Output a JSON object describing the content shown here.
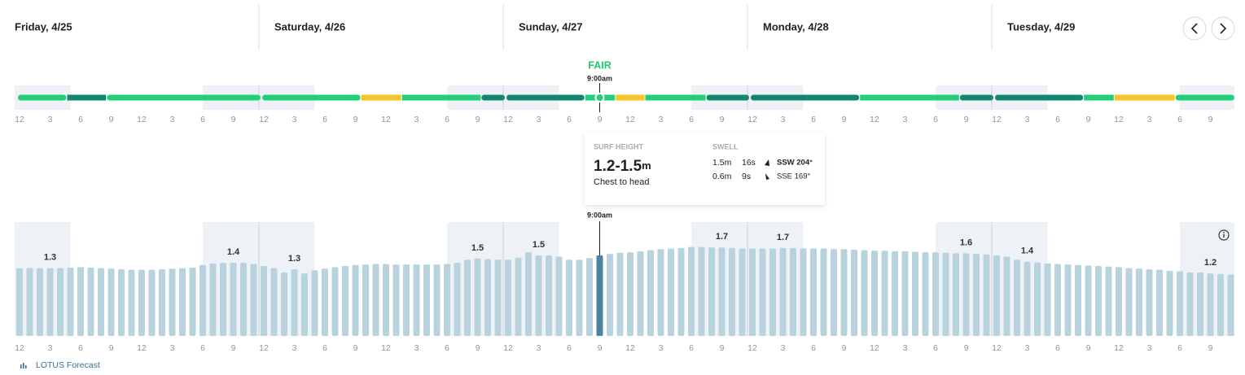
{
  "days": [
    "Friday, 4/25",
    "Saturday, 4/26",
    "Sunday, 4/27",
    "Monday, 4/28",
    "Tuesday, 4/29"
  ],
  "hour_labels": [
    12,
    3,
    6,
    9,
    12,
    3,
    6,
    9
  ],
  "night": [
    [
      0,
      5
    ],
    [
      18,
      29
    ],
    [
      42,
      53
    ],
    [
      66,
      77
    ],
    [
      90,
      101
    ],
    [
      114,
      120
    ]
  ],
  "rating": {
    "label": "FAIR",
    "time": "9:00am",
    "hour": 57,
    "segments": [
      {
        "color": "#22cf78",
        "start": 0,
        "end": 4.6
      },
      {
        "color": "#12866e",
        "start": 4.6,
        "end": 8.5
      },
      {
        "color": "#22cf78",
        "start": 8.5,
        "end": 24
      },
      {
        "color": "#22cf78",
        "start": 24,
        "end": 33.5
      },
      {
        "color": "#f6c329",
        "start": 33.5,
        "end": 37.5
      },
      {
        "color": "#22cf78",
        "start": 37.5,
        "end": 45.3
      },
      {
        "color": "#12866e",
        "start": 45.3,
        "end": 48
      },
      {
        "color": "#12866e",
        "start": 48,
        "end": 55.5
      },
      {
        "color": "#22cf78",
        "start": 55.5,
        "end": 58.5
      },
      {
        "color": "#f6c329",
        "start": 58.5,
        "end": 61.4
      },
      {
        "color": "#22cf78",
        "start": 61.4,
        "end": 67.4
      },
      {
        "color": "#12866e",
        "start": 67.4,
        "end": 72
      },
      {
        "color": "#12866e",
        "start": 72,
        "end": 82.5
      },
      {
        "color": "#22cf78",
        "start": 82.5,
        "end": 92.3
      },
      {
        "color": "#12866e",
        "start": 92.3,
        "end": 96
      },
      {
        "color": "#12866e",
        "start": 96,
        "end": 104.5
      },
      {
        "color": "#22cf78",
        "start": 104.5,
        "end": 107.5
      },
      {
        "color": "#f6c329",
        "start": 107.5,
        "end": 113.5
      },
      {
        "color": "#22cf78",
        "start": 113.5,
        "end": 120
      }
    ]
  },
  "tooltip": {
    "surf_title": "SURF HEIGHT",
    "height": "1.2-1.5",
    "unit": "m",
    "description": "Chest to head",
    "swell_title": "SWELL",
    "swells": [
      {
        "height": "1.5m",
        "period": "16s",
        "direction": "SSW 204°"
      },
      {
        "height": "0.6m",
        "period": "9s",
        "direction": "SSE 169°"
      }
    ]
  },
  "surf": {
    "ylim": [
      0,
      2.15
    ],
    "color": "#b9d3de",
    "selected_color": "#4d83a0",
    "time": "9:00am",
    "selected": 57,
    "values": [
      1.28,
      1.28,
      1.28,
      1.28,
      1.28,
      1.29,
      1.3,
      1.29,
      1.28,
      1.27,
      1.26,
      1.25,
      1.25,
      1.25,
      1.26,
      1.27,
      1.28,
      1.29,
      1.34,
      1.37,
      1.38,
      1.38,
      1.38,
      1.36,
      1.32,
      1.28,
      1.2,
      1.26,
      1.18,
      1.24,
      1.27,
      1.3,
      1.32,
      1.34,
      1.35,
      1.36,
      1.36,
      1.35,
      1.35,
      1.35,
      1.35,
      1.35,
      1.36,
      1.38,
      1.44,
      1.46,
      1.45,
      1.44,
      1.44,
      1.48,
      1.58,
      1.52,
      1.52,
      1.5,
      1.44,
      1.44,
      1.47,
      1.52,
      1.55,
      1.57,
      1.58,
      1.6,
      1.62,
      1.64,
      1.65,
      1.66,
      1.68,
      1.68,
      1.67,
      1.67,
      1.66,
      1.65,
      1.65,
      1.65,
      1.65,
      1.66,
      1.66,
      1.65,
      1.65,
      1.65,
      1.64,
      1.64,
      1.63,
      1.62,
      1.61,
      1.61,
      1.6,
      1.6,
      1.59,
      1.58,
      1.58,
      1.57,
      1.56,
      1.56,
      1.55,
      1.54,
      1.52,
      1.5,
      1.44,
      1.4,
      1.39,
      1.37,
      1.36,
      1.35,
      1.34,
      1.33,
      1.32,
      1.31,
      1.3,
      1.28,
      1.27,
      1.26,
      1.25,
      1.23,
      1.22,
      1.2,
      1.2,
      1.18,
      1.17,
      1.16
    ],
    "annotations": [
      {
        "hour": 3,
        "value": 1.3
      },
      {
        "hour": 21,
        "value": 1.4
      },
      {
        "hour": 27,
        "value": 1.3
      },
      {
        "hour": 45,
        "value": 1.5
      },
      {
        "hour": 51,
        "value": 1.5
      },
      {
        "hour": 69,
        "value": 1.7
      },
      {
        "hour": 75,
        "value": 1.7
      },
      {
        "hour": 93,
        "value": 1.6
      },
      {
        "hour": 99,
        "value": 1.4
      },
      {
        "hour": 117,
        "value": 1.2
      }
    ]
  },
  "footer": "LOTUS Forecast"
}
